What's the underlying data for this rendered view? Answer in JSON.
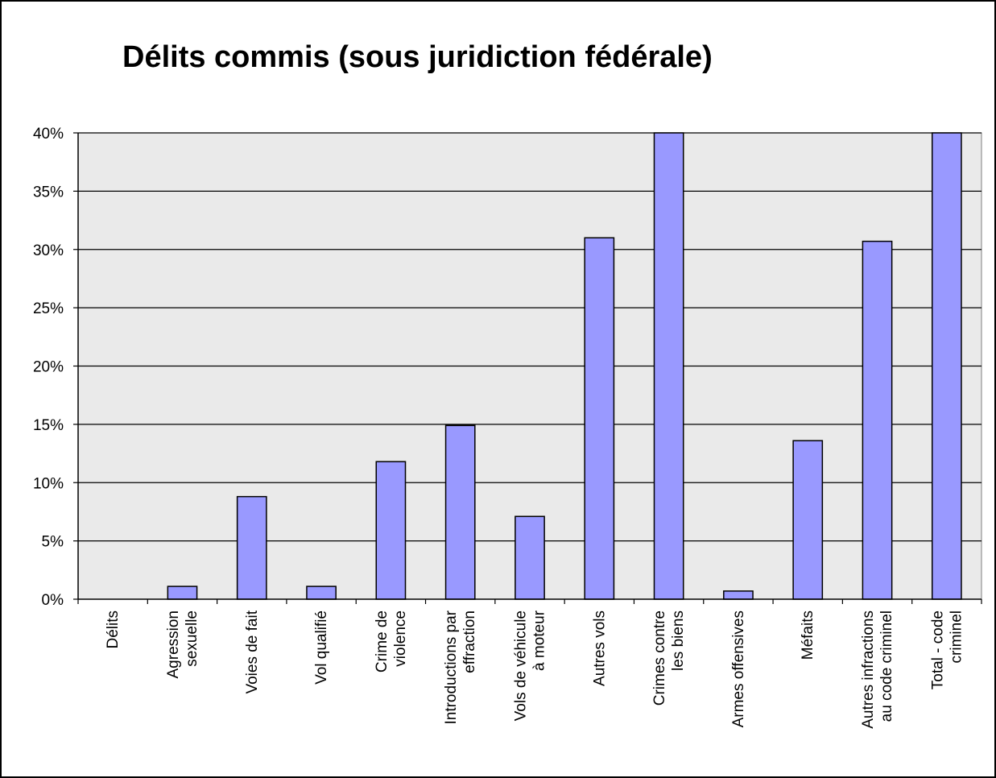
{
  "chart_data": {
    "type": "bar",
    "title": "Délits commis (sous juridiction fédérale)",
    "xlabel": "",
    "ylabel": "",
    "ylim": [
      0,
      40
    ],
    "y_tick_step": 5,
    "y_unit": "%",
    "grid": true,
    "legend": "none",
    "categories": [
      [
        "Délits"
      ],
      [
        "Agression",
        "sexuelle"
      ],
      [
        "Voies de fait"
      ],
      [
        "Vol qualifié"
      ],
      [
        "Crime de",
        "violence"
      ],
      [
        "Introductions par",
        "effraction"
      ],
      [
        "Vols de véhicule",
        "à moteur"
      ],
      [
        "Autres vols"
      ],
      [
        "Crimes contre",
        "les biens"
      ],
      [
        "Armes offensives"
      ],
      [
        "Méfaits"
      ],
      [
        "Autres infractions",
        "au code criminel"
      ],
      [
        "Total - code",
        "criminel"
      ]
    ],
    "series": [
      {
        "values": [
          0,
          1.1,
          8.8,
          1.1,
          11.8,
          14.9,
          7.1,
          31.0,
          40,
          0.7,
          13.6,
          30.7,
          40
        ]
      }
    ],
    "colors": {
      "bar": "#9999ff",
      "plot_background": "#eaeaea",
      "gridline": "#000000"
    }
  }
}
